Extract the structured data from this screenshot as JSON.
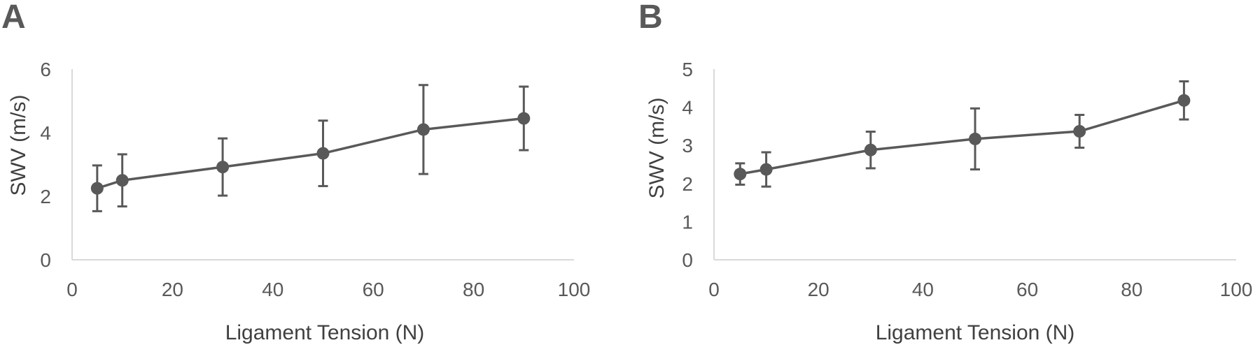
{
  "chart_data": [
    {
      "type": "line",
      "panel": "A",
      "xlabel": "Ligament Tension (N)",
      "ylabel": "SWV (m/s)",
      "xlim": [
        0,
        100
      ],
      "ylim": [
        0,
        6
      ],
      "xticks": [
        "0",
        "20",
        "40",
        "60",
        "80",
        "100"
      ],
      "yticks": [
        "0",
        "2",
        "4",
        "6"
      ],
      "grid": false,
      "series": [
        {
          "x": [
            5,
            10,
            30,
            50,
            70,
            90
          ],
          "y": [
            2.25,
            2.5,
            2.92,
            3.35,
            4.1,
            4.45
          ],
          "error": [
            0.72,
            0.82,
            0.9,
            1.03,
            1.4,
            1.0
          ]
        }
      ]
    },
    {
      "type": "line",
      "panel": "B",
      "xlabel": "Ligament Tension (N)",
      "ylabel": "SWV (m/s)",
      "xlim": [
        0,
        100
      ],
      "ylim": [
        0,
        5
      ],
      "xticks": [
        "0",
        "20",
        "40",
        "60",
        "80",
        "100"
      ],
      "yticks": [
        "0",
        "1",
        "2",
        "3",
        "4",
        "5"
      ],
      "grid": false,
      "series": [
        {
          "x": [
            5,
            10,
            30,
            50,
            70,
            90
          ],
          "y": [
            2.25,
            2.37,
            2.88,
            3.17,
            3.37,
            4.18
          ],
          "error": [
            0.28,
            0.45,
            0.48,
            0.8,
            0.43,
            0.5
          ]
        }
      ]
    }
  ],
  "colors": {
    "series": "#595959",
    "axis": "#d9d9d9",
    "text": "#595959"
  }
}
